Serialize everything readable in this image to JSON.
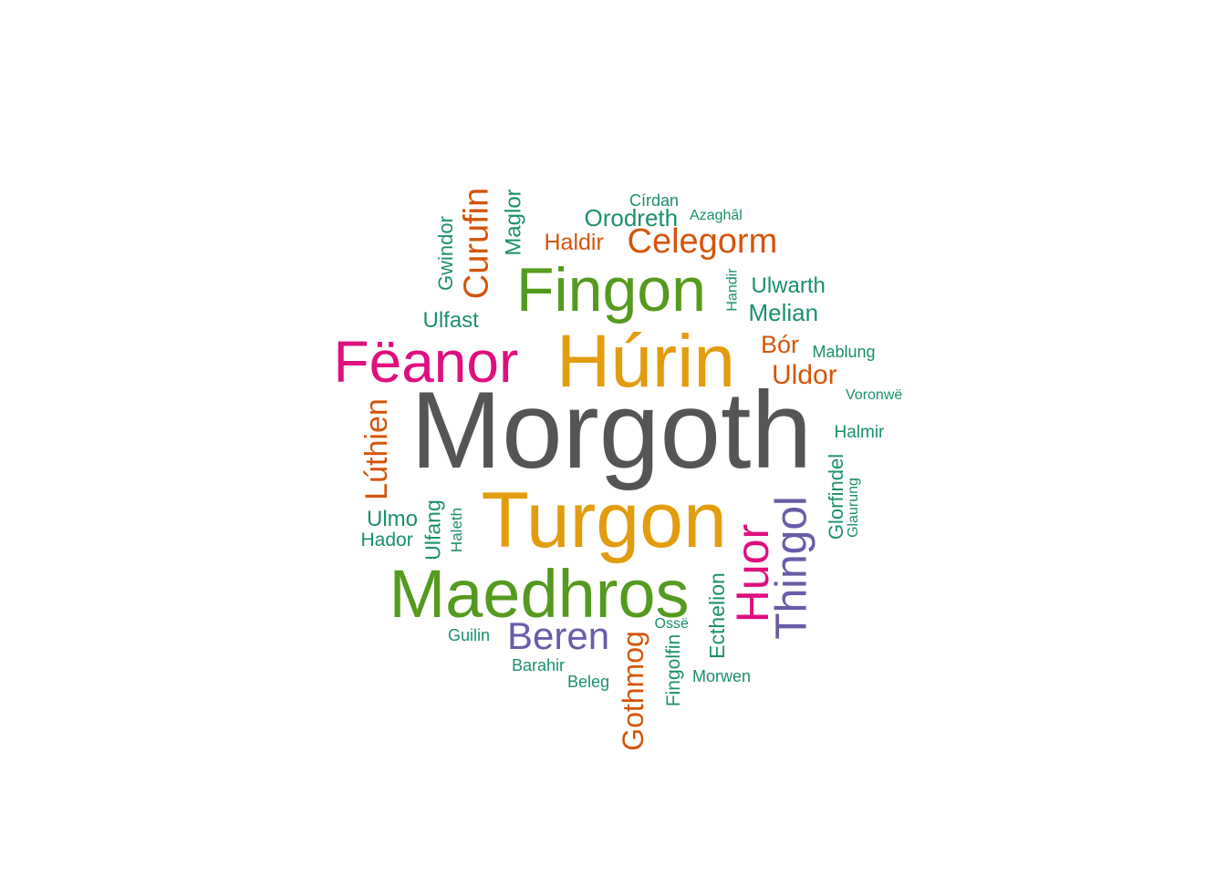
{
  "colors": {
    "dark_gray": "#555555",
    "gold": "#E29C0E",
    "green": "#549A1E",
    "pink": "#DF0F7F",
    "purple": "#6A5BA8",
    "orange": "#D4550A",
    "teal": "#1B8F6E"
  },
  "words": [
    {
      "id": "morgoth",
      "text": "Morgoth",
      "color": "#555555",
      "rotated": false
    },
    {
      "id": "turgon",
      "text": "Turgon",
      "color": "#E29C0E",
      "rotated": false
    },
    {
      "id": "hurin",
      "text": "Húrin",
      "color": "#E29C0E",
      "rotated": false
    },
    {
      "id": "maedhros",
      "text": "Maedhros",
      "color": "#549A1E",
      "rotated": false
    },
    {
      "id": "fingon",
      "text": "Fingon",
      "color": "#549A1E",
      "rotated": false
    },
    {
      "id": "feanor",
      "text": "Fëanor",
      "color": "#DF0F7F",
      "rotated": false
    },
    {
      "id": "huor",
      "text": "Huor",
      "color": "#DF0F7F",
      "rotated": true
    },
    {
      "id": "thingol",
      "text": "Thingol",
      "color": "#6A5BA8",
      "rotated": true
    },
    {
      "id": "beren",
      "text": "Beren",
      "color": "#6A5BA8",
      "rotated": false
    },
    {
      "id": "curufin",
      "text": "Curufin",
      "color": "#D4550A",
      "rotated": true
    },
    {
      "id": "celegorm",
      "text": "Celegorm",
      "color": "#D4550A",
      "rotated": false
    },
    {
      "id": "luthien",
      "text": "Lúthien",
      "color": "#D4550A",
      "rotated": true
    },
    {
      "id": "gothmog",
      "text": "Gothmog",
      "color": "#D4550A",
      "rotated": true
    },
    {
      "id": "haldir",
      "text": "Haldir",
      "color": "#D4550A",
      "rotated": false
    },
    {
      "id": "uldor",
      "text": "Uldor",
      "color": "#D4550A",
      "rotated": false
    },
    {
      "id": "bor",
      "text": "Bór",
      "color": "#D4550A",
      "rotated": false
    },
    {
      "id": "orodreth",
      "text": "Orodreth",
      "color": "#1B8F6E",
      "rotated": false
    },
    {
      "id": "cirdan",
      "text": "Círdan",
      "color": "#1B8F6E",
      "rotated": false
    },
    {
      "id": "azaghal",
      "text": "Azaghâl",
      "color": "#1B8F6E",
      "rotated": false
    },
    {
      "id": "maglor",
      "text": "Maglor",
      "color": "#1B8F6E",
      "rotated": true
    },
    {
      "id": "gwindor",
      "text": "Gwindor",
      "color": "#1B8F6E",
      "rotated": true
    },
    {
      "id": "ulfast",
      "text": "Ulfast",
      "color": "#1B8F6E",
      "rotated": false
    },
    {
      "id": "handir",
      "text": "Handir",
      "color": "#1B8F6E",
      "rotated": true
    },
    {
      "id": "ulwarth",
      "text": "Ulwarth",
      "color": "#1B8F6E",
      "rotated": false
    },
    {
      "id": "melian",
      "text": "Melian",
      "color": "#1B8F6E",
      "rotated": false
    },
    {
      "id": "mablung",
      "text": "Mablung",
      "color": "#1B8F6E",
      "rotated": false
    },
    {
      "id": "voronwe",
      "text": "Voronwë",
      "color": "#1B8F6E",
      "rotated": false
    },
    {
      "id": "halmir",
      "text": "Halmir",
      "color": "#1B8F6E",
      "rotated": false
    },
    {
      "id": "glorfindel",
      "text": "Glorfindel",
      "color": "#1B8F6E",
      "rotated": true
    },
    {
      "id": "glaurung",
      "text": "Glaurung",
      "color": "#1B8F6E",
      "rotated": true
    },
    {
      "id": "ulmo",
      "text": "Ulmo",
      "color": "#1B8F6E",
      "rotated": false
    },
    {
      "id": "hador",
      "text": "Hador",
      "color": "#1B8F6E",
      "rotated": false
    },
    {
      "id": "ulfang",
      "text": "Ulfang",
      "color": "#1B8F6E",
      "rotated": true
    },
    {
      "id": "haleth",
      "text": "Haleth",
      "color": "#1B8F6E",
      "rotated": true
    },
    {
      "id": "guilin",
      "text": "Guilin",
      "color": "#1B8F6E",
      "rotated": false
    },
    {
      "id": "barahir",
      "text": "Barahir",
      "color": "#1B8F6E",
      "rotated": false
    },
    {
      "id": "beleg",
      "text": "Beleg",
      "color": "#1B8F6E",
      "rotated": false
    },
    {
      "id": "osse",
      "text": "Ossë",
      "color": "#1B8F6E",
      "rotated": false
    },
    {
      "id": "fingolfin",
      "text": "Fingolfin",
      "color": "#1B8F6E",
      "rotated": true
    },
    {
      "id": "ecthelion",
      "text": "Ecthelion",
      "color": "#1B8F6E",
      "rotated": true
    },
    {
      "id": "morwen",
      "text": "Morwen",
      "color": "#1B8F6E",
      "rotated": false
    }
  ]
}
